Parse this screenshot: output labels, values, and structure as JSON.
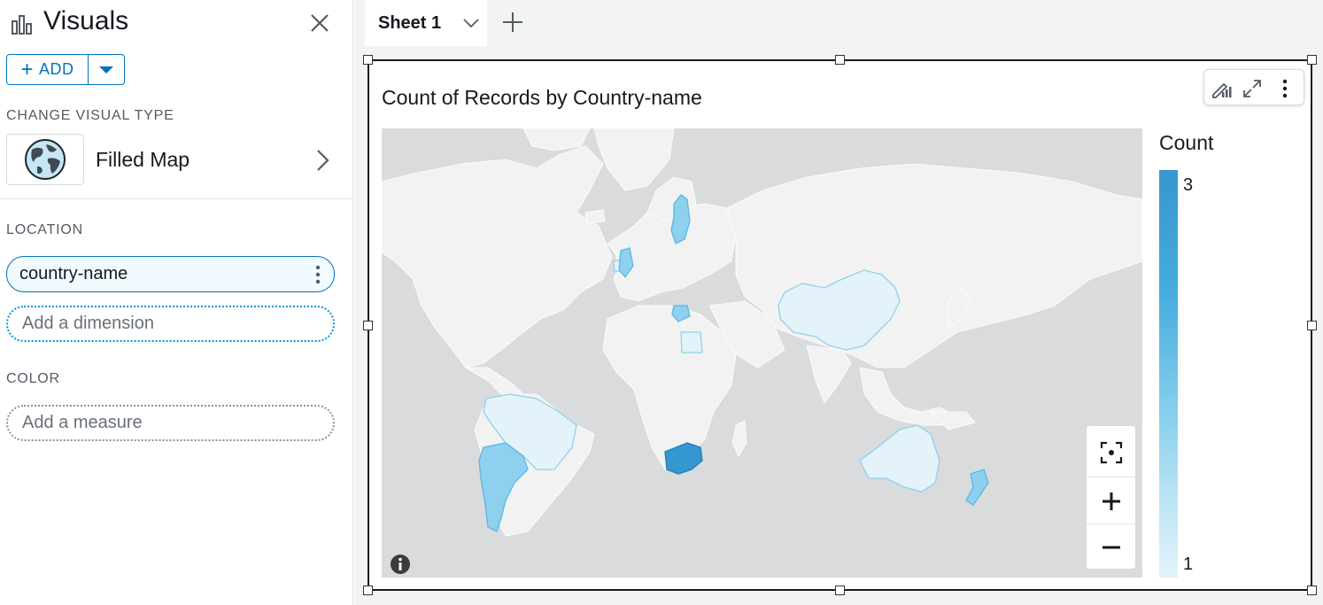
{
  "panel": {
    "title": "Visuals",
    "add_label": "ADD",
    "change_visual_type_label": "CHANGE VISUAL TYPE",
    "visual_type": "Filled Map",
    "location_label": "LOCATION",
    "location_field": "country-name",
    "add_dimension_placeholder": "Add a dimension",
    "color_label": "COLOR",
    "add_measure_placeholder": "Add a measure"
  },
  "sheet_tab": {
    "label": "Sheet 1"
  },
  "visual": {
    "title": "Count of Records by Country-name",
    "legend_title": "Count",
    "legend_max": "3",
    "legend_min": "1"
  },
  "colors": {
    "accent": "#0073bb",
    "map_water": "#d9dbdd",
    "map_land": "#f2f2f2",
    "count_1": "#e4f3fa",
    "count_2": "#8fd0ee",
    "count_3": "#3597cf"
  },
  "icons": {
    "title": "bar-chart-icon",
    "close": "close-icon",
    "visual_type": "globe-icon",
    "toolbar": [
      "format-visual-icon",
      "expand-icon",
      "more-options-icon"
    ],
    "map_controls": [
      "focus-icon",
      "zoom-in-icon",
      "zoom-out-icon"
    ],
    "info": "info-icon"
  }
}
